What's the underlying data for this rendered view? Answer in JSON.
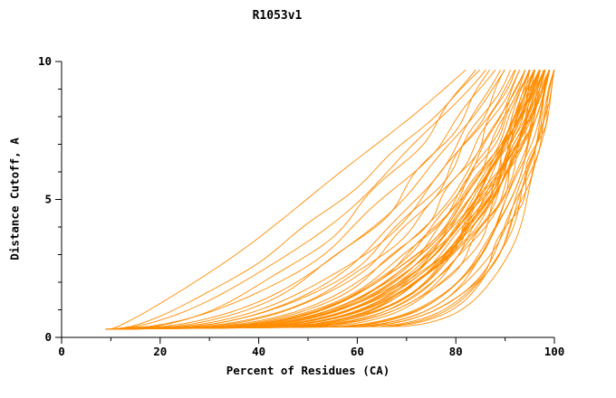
{
  "chart_data": {
    "type": "line",
    "title": "R1053v1",
    "xlabel": "Percent of Residues (CA)",
    "ylabel": "Distance Cutoff, A",
    "xlim": [
      0,
      100
    ],
    "ylim": [
      0,
      10
    ],
    "x_major_ticks": [
      0,
      20,
      40,
      60,
      80,
      100
    ],
    "x_minor_step": 10,
    "y_major_ticks": [
      0,
      5,
      10
    ],
    "y_minor_step": 1,
    "grid": false,
    "legend": "none",
    "line_color": "#ff8c00",
    "axis_color": "#000000",
    "background": "#ffffff",
    "y_start": 0.3,
    "y_end": 9.7,
    "n_series": 60,
    "series": [
      {
        "x_start": 10,
        "x_end": 82,
        "shape": 0.85
      },
      {
        "x_start": 11,
        "x_end": 85,
        "shape": 0.7
      },
      {
        "x_start": 10,
        "x_end": 86,
        "shape": 0.6
      },
      {
        "x_start": 12,
        "x_end": 84,
        "shape": 0.52
      },
      {
        "x_start": 9,
        "x_end": 88,
        "shape": 0.48
      },
      {
        "x_start": 10,
        "x_end": 90,
        "shape": 0.44
      },
      {
        "x_start": 11,
        "x_end": 87,
        "shape": 0.41
      },
      {
        "x_start": 10,
        "x_end": 92,
        "shape": 0.38
      },
      {
        "x_start": 12,
        "x_end": 89,
        "shape": 0.36
      },
      {
        "x_start": 9,
        "x_end": 91,
        "shape": 0.34
      },
      {
        "x_start": 10,
        "x_end": 93,
        "shape": 0.33
      },
      {
        "x_start": 11,
        "x_end": 90,
        "shape": 0.31
      },
      {
        "x_start": 10,
        "x_end": 94,
        "shape": 0.3
      },
      {
        "x_start": 12,
        "x_end": 92,
        "shape": 0.29
      },
      {
        "x_start": 10,
        "x_end": 95,
        "shape": 0.28
      },
      {
        "x_start": 11,
        "x_end": 96,
        "shape": 0.27
      },
      {
        "x_start": 9,
        "x_end": 94,
        "shape": 0.26
      },
      {
        "x_start": 10,
        "x_end": 97,
        "shape": 0.26
      },
      {
        "x_start": 12,
        "x_end": 95,
        "shape": 0.25
      },
      {
        "x_start": 10,
        "x_end": 98,
        "shape": 0.25
      },
      {
        "x_start": 11,
        "x_end": 96,
        "shape": 0.24
      },
      {
        "x_start": 9,
        "x_end": 97,
        "shape": 0.24
      },
      {
        "x_start": 10,
        "x_end": 99,
        "shape": 0.23
      },
      {
        "x_start": 12,
        "x_end": 98,
        "shape": 0.23
      },
      {
        "x_start": 11,
        "x_end": 95,
        "shape": 0.22
      },
      {
        "x_start": 10,
        "x_end": 96,
        "shape": 0.22
      },
      {
        "x_start": 9,
        "x_end": 98,
        "shape": 0.21
      },
      {
        "x_start": 10,
        "x_end": 99,
        "shape": 0.21
      },
      {
        "x_start": 12,
        "x_end": 97,
        "shape": 0.2
      },
      {
        "x_start": 11,
        "x_end": 98,
        "shape": 0.2
      },
      {
        "x_start": 10,
        "x_end": 96,
        "shape": 0.19
      },
      {
        "x_start": 9,
        "x_end": 99,
        "shape": 0.19
      },
      {
        "x_start": 10,
        "x_end": 97,
        "shape": 0.18
      },
      {
        "x_start": 11,
        "x_end": 99,
        "shape": 0.18
      },
      {
        "x_start": 12,
        "x_end": 98,
        "shape": 0.17
      },
      {
        "x_start": 10,
        "x_end": 95,
        "shape": 0.17
      },
      {
        "x_start": 9,
        "x_end": 96,
        "shape": 0.16
      },
      {
        "x_start": 10,
        "x_end": 98,
        "shape": 0.16
      },
      {
        "x_start": 11,
        "x_end": 97,
        "shape": 0.15
      },
      {
        "x_start": 12,
        "x_end": 99,
        "shape": 0.22
      },
      {
        "x_start": 10,
        "x_end": 94,
        "shape": 0.24
      },
      {
        "x_start": 11,
        "x_end": 93,
        "shape": 0.26
      },
      {
        "x_start": 9,
        "x_end": 95,
        "shape": 0.2
      },
      {
        "x_start": 10,
        "x_end": 97,
        "shape": 0.23
      },
      {
        "x_start": 11,
        "x_end": 98,
        "shape": 0.21
      },
      {
        "x_start": 12,
        "x_end": 96,
        "shape": 0.19
      },
      {
        "x_start": 10,
        "x_end": 99,
        "shape": 0.25
      },
      {
        "x_start": 9,
        "x_end": 97,
        "shape": 0.27
      },
      {
        "x_start": 11,
        "x_end": 96,
        "shape": 0.18
      },
      {
        "x_start": 10,
        "x_end": 99,
        "shape": 0.14
      },
      {
        "x_start": 11,
        "x_end": 100,
        "shape": 0.13
      },
      {
        "x_start": 9,
        "x_end": 98,
        "shape": 0.12
      },
      {
        "x_start": 10,
        "x_end": 100,
        "shape": 0.11
      },
      {
        "x_start": 12,
        "x_end": 99,
        "shape": 0.1
      },
      {
        "x_start": 10,
        "x_end": 98,
        "shape": 0.13
      },
      {
        "x_start": 11,
        "x_end": 100,
        "shape": 0.12
      },
      {
        "x_start": 9,
        "x_end": 99,
        "shape": 0.1
      },
      {
        "x_start": 10,
        "x_end": 100,
        "shape": 0.09
      },
      {
        "x_start": 11,
        "x_end": 99,
        "shape": 0.14
      },
      {
        "x_start": 10,
        "x_end": 100,
        "shape": 0.12
      }
    ]
  }
}
